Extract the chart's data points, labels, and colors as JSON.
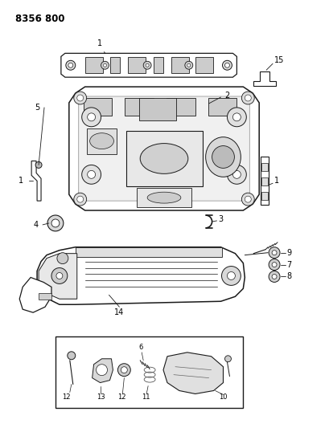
{
  "title_code": "8356 800",
  "bg": "#ffffff",
  "lc": "#1a1a1a",
  "fig_w": 4.1,
  "fig_h": 5.33,
  "dpi": 100,
  "xlim": [
    0,
    410
  ],
  "ylim": [
    0,
    533
  ]
}
